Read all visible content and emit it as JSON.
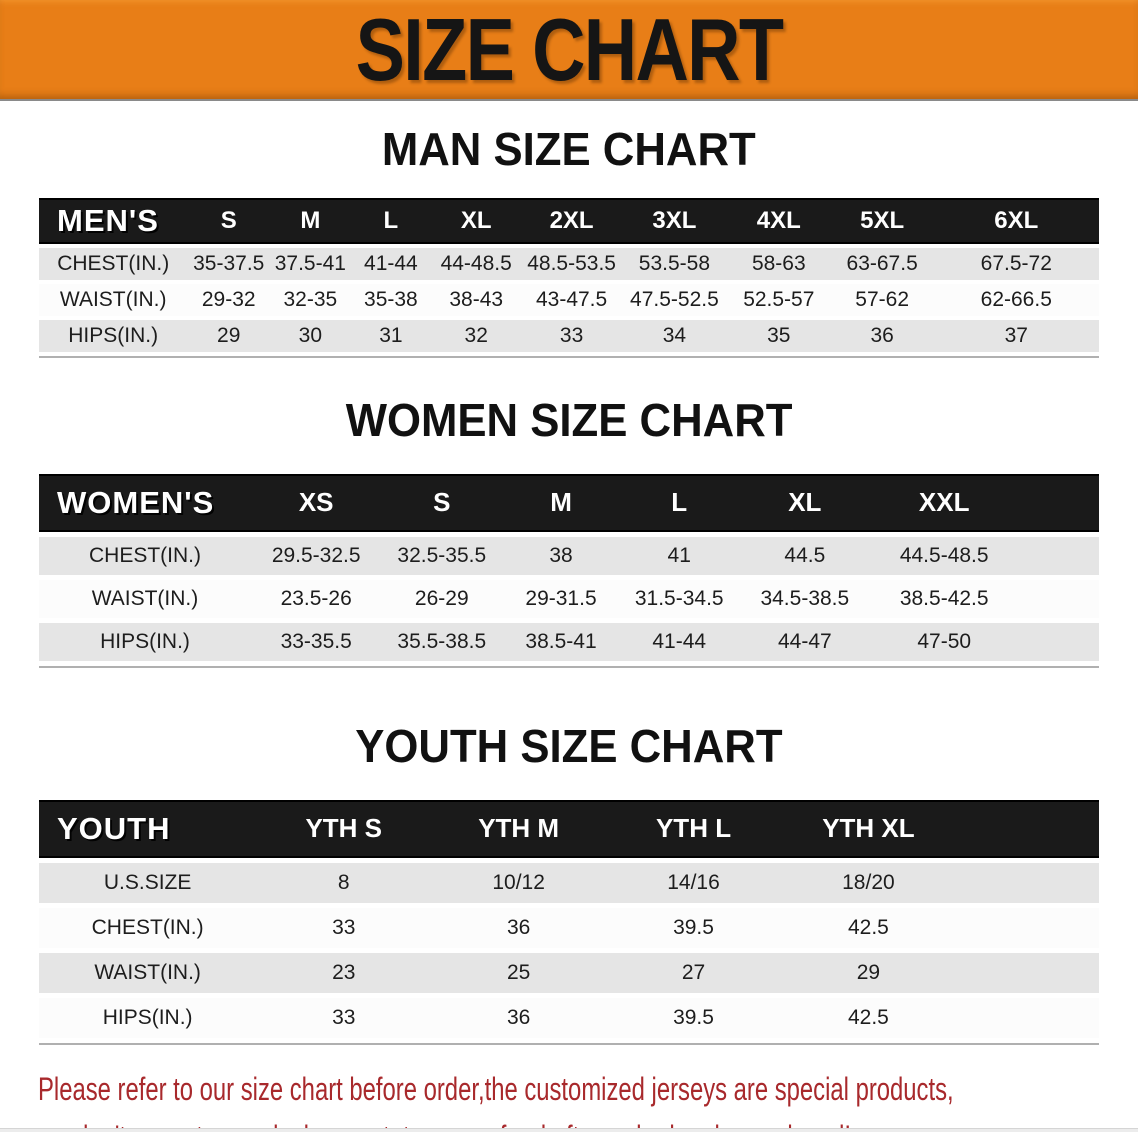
{
  "banner": {
    "title": "SIZE CHART",
    "bg_color": "#e87e17",
    "text_color": "#151515"
  },
  "sections": [
    {
      "title": "MAN SIZE CHART",
      "group_label": "MEN'S",
      "columns": [
        "S",
        "M",
        "L",
        "XL",
        "2XL",
        "3XL",
        "4XL",
        "5XL",
        "6XL"
      ],
      "rows": [
        {
          "label": "CHEST(IN.)",
          "values": [
            "35-37.5",
            "37.5-41",
            "41-44",
            "44-48.5",
            "48.5-53.5",
            "53.5-58",
            "58-63",
            "63-67.5",
            "67.5-72"
          ]
        },
        {
          "label": "WAIST(IN.)",
          "values": [
            "29-32",
            "32-35",
            "35-38",
            "38-43",
            "43-47.5",
            "47.5-52.5",
            "52.5-57",
            "57-62",
            "62-66.5"
          ]
        },
        {
          "label": "HIPS(IN.)",
          "values": [
            "29",
            "30",
            "31",
            "32",
            "33",
            "34",
            "35",
            "36",
            "37"
          ]
        }
      ]
    },
    {
      "title": "WOMEN SIZE CHART",
      "group_label": "WOMEN'S",
      "columns": [
        "XS",
        "S",
        "M",
        "L",
        "XL",
        "XXL"
      ],
      "rows": [
        {
          "label": "CHEST(IN.)",
          "values": [
            "29.5-32.5",
            "32.5-35.5",
            "38",
            "41",
            "44.5",
            "44.5-48.5"
          ]
        },
        {
          "label": "WAIST(IN.)",
          "values": [
            "23.5-26",
            "26-29",
            "29-31.5",
            "31.5-34.5",
            "34.5-38.5",
            "38.5-42.5"
          ]
        },
        {
          "label": "HIPS(IN.)",
          "values": [
            "33-35.5",
            "35.5-38.5",
            "38.5-41",
            "41-44",
            "44-47",
            "47-50"
          ]
        }
      ]
    },
    {
      "title": "YOUTH SIZE CHART",
      "group_label": "YOUTH",
      "columns": [
        "YTH S",
        "YTH M",
        "YTH L",
        "YTH XL"
      ],
      "rows": [
        {
          "label": "U.S.SIZE",
          "values": [
            "8",
            "10/12",
            "14/16",
            "18/20"
          ]
        },
        {
          "label": "CHEST(IN.)",
          "values": [
            "33",
            "36",
            "39.5",
            "42.5"
          ]
        },
        {
          "label": "WAIST(IN.)",
          "values": [
            "23",
            "25",
            "27",
            "29"
          ]
        },
        {
          "label": "HIPS(IN.)",
          "values": [
            "33",
            "36",
            "39.5",
            "42.5"
          ]
        }
      ]
    }
  ],
  "footer": {
    "line1": "Please refer to our size chart before order,the customized jerseys are special products,",
    "line2": "we don't accept cancel, change, teturn or refund after order has been placed!",
    "text_color": "#a8292c"
  }
}
